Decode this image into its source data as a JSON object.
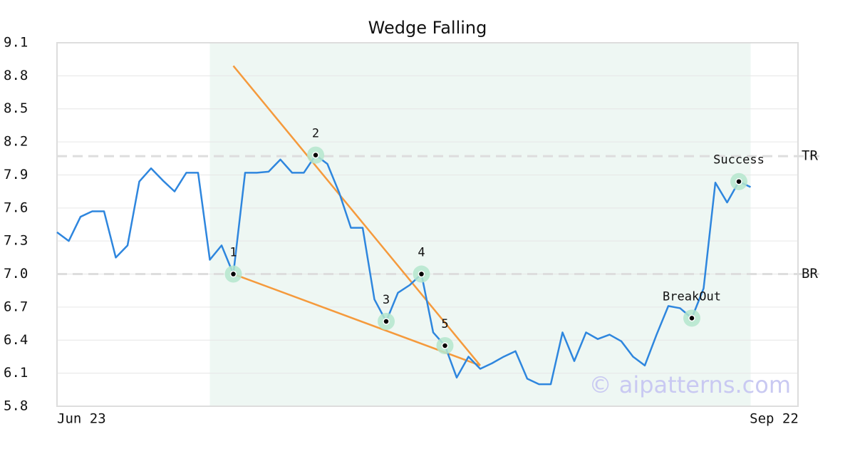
{
  "chart_data": {
    "type": "line",
    "title": "Wedge Falling",
    "categories": [
      "Jun 23",
      null,
      null,
      null,
      null,
      null,
      null,
      null,
      null,
      null,
      null,
      null,
      null,
      null,
      null,
      null,
      null,
      null,
      null,
      null,
      null,
      null,
      null,
      null,
      null,
      null,
      null,
      null,
      null,
      null,
      null,
      null,
      null,
      null,
      null,
      null,
      null,
      null,
      null,
      null,
      null,
      null,
      null,
      null,
      null,
      null,
      null,
      null,
      null,
      null,
      null,
      null,
      null,
      null,
      null,
      null,
      null,
      null,
      null,
      null,
      null,
      "Sep 22"
    ],
    "series": [
      {
        "color": "#2e86de",
        "values": [
          7.38,
          7.3,
          7.52,
          7.57,
          7.57,
          7.15,
          7.26,
          7.84,
          7.96,
          7.85,
          7.75,
          7.92,
          7.92,
          7.13,
          7.26,
          7.0,
          7.92,
          7.92,
          7.93,
          8.04,
          7.92,
          7.92,
          8.08,
          8.0,
          7.74,
          7.42,
          7.42,
          6.77,
          6.57,
          6.83,
          6.9,
          7.0,
          6.47,
          6.35,
          6.06,
          6.25,
          6.14,
          6.19,
          6.25,
          6.3,
          6.05,
          6.0,
          6.0,
          6.47,
          6.21,
          6.47,
          6.41,
          6.45,
          6.39,
          6.25,
          6.17,
          6.45,
          6.71,
          6.69,
          6.6,
          6.87,
          7.83,
          7.65,
          7.84,
          7.79,
          null,
          null
        ]
      }
    ],
    "markers": {
      "values": [
        null,
        null,
        null,
        null,
        null,
        null,
        null,
        null,
        null,
        null,
        null,
        null,
        null,
        null,
        null,
        7.0,
        null,
        null,
        null,
        null,
        null,
        null,
        8.08,
        null,
        null,
        null,
        null,
        null,
        6.57,
        null,
        null,
        7.0,
        null,
        6.35,
        null,
        null,
        null,
        null,
        null,
        null,
        null,
        null,
        null,
        null,
        null,
        null,
        null,
        null,
        null,
        null,
        null,
        null,
        null,
        null,
        6.6,
        null,
        null,
        null,
        7.84,
        null,
        null,
        null
      ],
      "labels": [
        null,
        null,
        null,
        null,
        null,
        null,
        null,
        null,
        null,
        null,
        null,
        null,
        null,
        null,
        null,
        "1",
        null,
        null,
        null,
        null,
        null,
        null,
        "2",
        null,
        null,
        null,
        null,
        null,
        "3",
        null,
        null,
        "4",
        null,
        "5",
        null,
        null,
        null,
        null,
        null,
        null,
        null,
        null,
        null,
        null,
        null,
        null,
        null,
        null,
        null,
        null,
        null,
        null,
        null,
        null,
        "BreakOut",
        null,
        null,
        null,
        "Success",
        null,
        null,
        null
      ]
    },
    "trend_lines": [
      {
        "color": "#f59a3c",
        "values": [
          null,
          null,
          null,
          null,
          null,
          null,
          null,
          null,
          null,
          null,
          null,
          null,
          null,
          null,
          null,
          8.89,
          null,
          null,
          null,
          null,
          null,
          null,
          null,
          null,
          null,
          null,
          null,
          null,
          null,
          null,
          null,
          null,
          null,
          null,
          null,
          null,
          6.17,
          null,
          null,
          null,
          null,
          null,
          null,
          null,
          null,
          null,
          null,
          null,
          null,
          null,
          null,
          null,
          null,
          null,
          null,
          null,
          null,
          null,
          null,
          null,
          null,
          null
        ]
      },
      {
        "color": "#f59a3c",
        "values": [
          null,
          null,
          null,
          null,
          null,
          null,
          null,
          null,
          null,
          null,
          null,
          null,
          null,
          null,
          null,
          7.0,
          null,
          null,
          null,
          null,
          null,
          null,
          null,
          null,
          null,
          null,
          null,
          null,
          null,
          null,
          null,
          null,
          null,
          null,
          null,
          null,
          6.17,
          null,
          null,
          null,
          null,
          null,
          null,
          null,
          null,
          null,
          null,
          null,
          null,
          null,
          null,
          null,
          null,
          null,
          null,
          null,
          null,
          null,
          null,
          null,
          null,
          null
        ]
      }
    ],
    "levels": [
      {
        "label": "TR",
        "value": 8.07
      },
      {
        "label": "BR",
        "value": 7.0
      }
    ],
    "highlight_range": [
      13,
      59
    ],
    "watermark": "© aipatterns.com",
    "ylim": [
      5.8,
      9.1
    ],
    "yticks": [
      5.8,
      6.1,
      6.4,
      6.7,
      {
        "value": 7,
        "label": "7.0"
      },
      7.3,
      7.6,
      7.9,
      8.2,
      8.5,
      8.8,
      9.1
    ],
    "grid": true
  }
}
